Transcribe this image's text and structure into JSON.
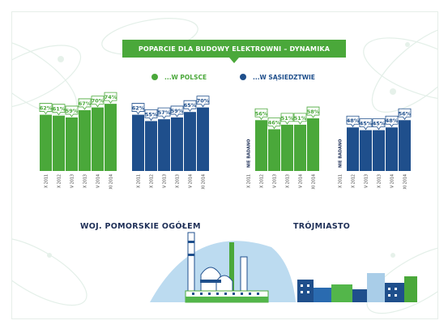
{
  "header": {
    "title": "POPARCIE DLA BUDOWY ELEKTROWNI – DYNAMIKA"
  },
  "legend": [
    {
      "label": "...W POLSCE",
      "color": "#4aa83a"
    },
    {
      "label": "...W SĄSIEDZTWIE",
      "color": "#1f4f8c"
    }
  ],
  "chart_data": [
    {
      "type": "bar",
      "title": "WOJ. POMORSKIE OGÓŁEM",
      "categories": [
        "X 2011",
        "X 2012",
        "V 2013",
        "X 2013",
        "V 2014",
        "XI 2014"
      ],
      "series": [
        {
          "name": "...W POLSCE",
          "color": "#4aa83a",
          "values": [
            62,
            61,
            59,
            67,
            70,
            74
          ],
          "labels": [
            "62%",
            "61%",
            "59%",
            "67%",
            "70%",
            "74%"
          ]
        },
        {
          "name": "...W SĄSIEDZTWIE",
          "color": "#1f4f8c",
          "values": [
            62,
            55,
            57,
            59,
            65,
            70
          ],
          "labels": [
            "62%",
            "55%",
            "57%",
            "59%",
            "65%",
            "70%"
          ]
        }
      ]
    },
    {
      "type": "bar",
      "title": "TRÓJMIASTO",
      "categories": [
        "X 2011",
        "X 2012",
        "V 2013",
        "X 2013",
        "V 2014",
        "XI 2014"
      ],
      "not_measured_label": "NIE BADANO",
      "series": [
        {
          "name": "...W POLSCE",
          "color": "#4aa83a",
          "values": [
            null,
            56,
            46,
            51,
            51,
            58
          ],
          "labels": [
            "",
            "56%",
            "46%",
            "51%",
            "51%",
            "58%"
          ]
        },
        {
          "name": "...W SĄSIEDZTWIE",
          "color": "#1f4f8c",
          "values": [
            null,
            48,
            45,
            45,
            48,
            56
          ],
          "labels": [
            "",
            "48%",
            "45%",
            "45%",
            "48%",
            "56%"
          ]
        }
      ]
    }
  ],
  "colors": {
    "green": "#4aa83a",
    "blue": "#1f4f8c",
    "title_dark": "#1e2f57",
    "sky": "#bcdbf0",
    "ground_green": "#53b64a"
  }
}
